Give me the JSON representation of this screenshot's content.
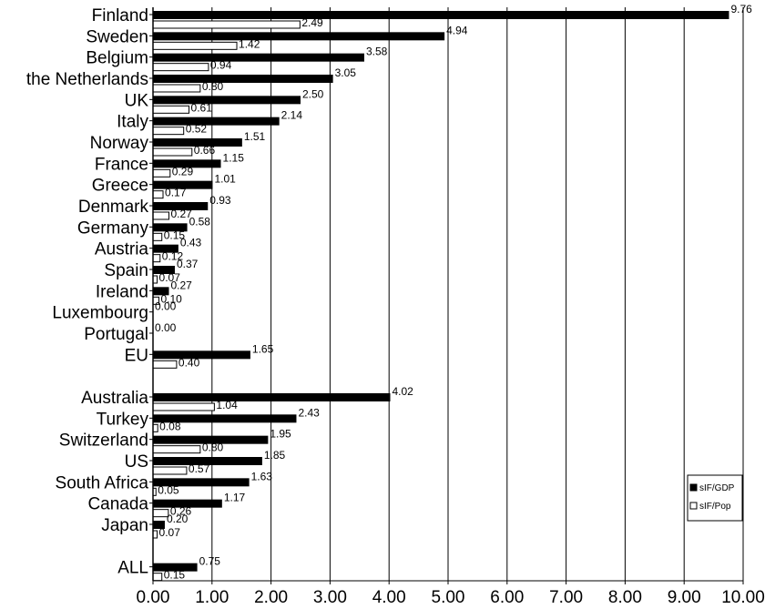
{
  "chart_data": {
    "type": "bar",
    "orientation": "horizontal",
    "title": "",
    "xlabel": "",
    "ylabel": "",
    "xlim": [
      0,
      10
    ],
    "x_ticks": [
      "0.00",
      "1.00",
      "2.00",
      "3.00",
      "4.00",
      "5.00",
      "6.00",
      "7.00",
      "8.00",
      "9.00",
      "10.00"
    ],
    "grid": "vertical",
    "legend_position": "right",
    "colors": {
      "sIF/GDP": "#000000",
      "sIF/Pop": "#ffffff"
    },
    "series": [
      {
        "name": "sIF/GDP",
        "fill": "#000000"
      },
      {
        "name": "sIF/Pop",
        "fill": "#ffffff"
      }
    ],
    "groups": [
      {
        "category": "Finland",
        "gdp": 9.76,
        "gdp_label": "9.76",
        "pop": 2.49,
        "pop_label": "2.49"
      },
      {
        "category": "Sweden",
        "gdp": 4.94,
        "gdp_label": "4.94",
        "pop": 1.42,
        "pop_label": "1.42"
      },
      {
        "category": "Belgium",
        "gdp": 3.58,
        "gdp_label": "3.58",
        "pop": 0.94,
        "pop_label": "0.94"
      },
      {
        "category": "the Netherlands",
        "gdp": 3.05,
        "gdp_label": "3.05",
        "pop": 0.8,
        "pop_label": "0.80"
      },
      {
        "category": "UK",
        "gdp": 2.5,
        "gdp_label": "2.50",
        "pop": 0.61,
        "pop_label": "0.61"
      },
      {
        "category": "Italy",
        "gdp": 2.14,
        "gdp_label": "2.14",
        "pop": 0.52,
        "pop_label": "0.52"
      },
      {
        "category": "Norway",
        "gdp": 1.51,
        "gdp_label": "1.51",
        "pop": 0.66,
        "pop_label": "0.66"
      },
      {
        "category": "France",
        "gdp": 1.15,
        "gdp_label": "1.15",
        "pop": 0.29,
        "pop_label": "0.29"
      },
      {
        "category": "Greece",
        "gdp": 1.01,
        "gdp_label": "1.01",
        "pop": 0.17,
        "pop_label": "0.17"
      },
      {
        "category": "Denmark",
        "gdp": 0.93,
        "gdp_label": "0.93",
        "pop": 0.27,
        "pop_label": "0.27"
      },
      {
        "category": "Germany",
        "gdp": 0.58,
        "gdp_label": "0.58",
        "pop": 0.15,
        "pop_label": "0.15"
      },
      {
        "category": "Austria",
        "gdp": 0.43,
        "gdp_label": "0.43",
        "pop": 0.12,
        "pop_label": "0.12"
      },
      {
        "category": "Spain",
        "gdp": 0.37,
        "gdp_label": "0.37",
        "pop": 0.07,
        "pop_label": "0.07"
      },
      {
        "category": "Ireland",
        "gdp": 0.27,
        "gdp_label": "0.27",
        "pop": 0.1,
        "pop_label": "0.10"
      },
      {
        "category": "Luxembourg",
        "gdp": 0.0,
        "gdp_label": "0.00",
        "pop": null,
        "pop_label": ""
      },
      {
        "category": "Portugal",
        "gdp": 0.0,
        "gdp_label": "0.00",
        "pop": null,
        "pop_label": ""
      },
      {
        "category": "EU",
        "gdp": 1.65,
        "gdp_label": "1.65",
        "pop": 0.4,
        "pop_label": "0.40"
      },
      {
        "category": "",
        "gdp": null,
        "gdp_label": "",
        "pop": null,
        "pop_label": ""
      },
      {
        "category": "Australia",
        "gdp": 4.02,
        "gdp_label": "4.02",
        "pop": 1.04,
        "pop_label": "1.04"
      },
      {
        "category": "Turkey",
        "gdp": 2.43,
        "gdp_label": "2.43",
        "pop": 0.08,
        "pop_label": "0.08"
      },
      {
        "category": "Switzerland",
        "gdp": 1.95,
        "gdp_label": "1.95",
        "pop": 0.8,
        "pop_label": "0.80"
      },
      {
        "category": "US",
        "gdp": 1.85,
        "gdp_label": "1.85",
        "pop": 0.57,
        "pop_label": "0.57"
      },
      {
        "category": "South Africa",
        "gdp": 1.63,
        "gdp_label": "1.63",
        "pop": 0.05,
        "pop_label": "0.05"
      },
      {
        "category": "Canada",
        "gdp": 1.17,
        "gdp_label": "1.17",
        "pop": 0.26,
        "pop_label": "0.26"
      },
      {
        "category": "Japan",
        "gdp": 0.2,
        "gdp_label": "0.20",
        "pop": 0.07,
        "pop_label": "0.07"
      },
      {
        "category": "",
        "gdp": null,
        "gdp_label": "",
        "pop": null,
        "pop_label": ""
      },
      {
        "category": "ALL",
        "gdp": 0.75,
        "gdp_label": "0.75",
        "pop": 0.15,
        "pop_label": "0.15"
      }
    ]
  }
}
